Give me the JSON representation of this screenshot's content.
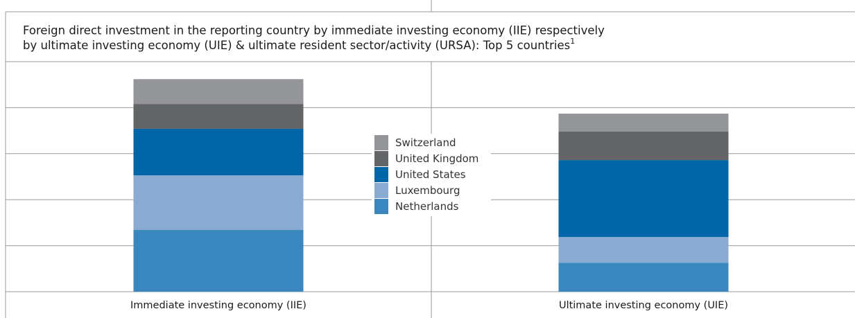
{
  "chart_data": {
    "type": "stacked-bar",
    "title": [
      "Foreign direct investment in the reporting country by immediate investing economy (IIE) respectively",
      "by ultimate investing economy (UIE) & ultimate resident sector/activity (URSA): Top 5 countries"
    ],
    "title_note": "1",
    "categories": [
      "Immediate investing economy (IIE)",
      "Ultimate investing economy (UIE)"
    ],
    "series": [
      {
        "name": "Netherlands",
        "color": "#3a87bf",
        "values": [
          1.34,
          0.63
        ]
      },
      {
        "name": "Luxembourg",
        "color": "#89abd2",
        "values": [
          1.19,
          0.56
        ]
      },
      {
        "name": "United States",
        "color": "#0066a8",
        "values": [
          1.01,
          1.67
        ]
      },
      {
        "name": "United Kingdom",
        "color": "#636466",
        "values": [
          0.54,
          0.62
        ]
      },
      {
        "name": "Switzerland",
        "color": "#939598",
        "values": [
          0.54,
          0.39
        ]
      }
    ],
    "ylim": [
      0,
      5
    ],
    "yticks": [
      0,
      1,
      2,
      3,
      4,
      5
    ],
    "grid": true,
    "legend": "center"
  }
}
